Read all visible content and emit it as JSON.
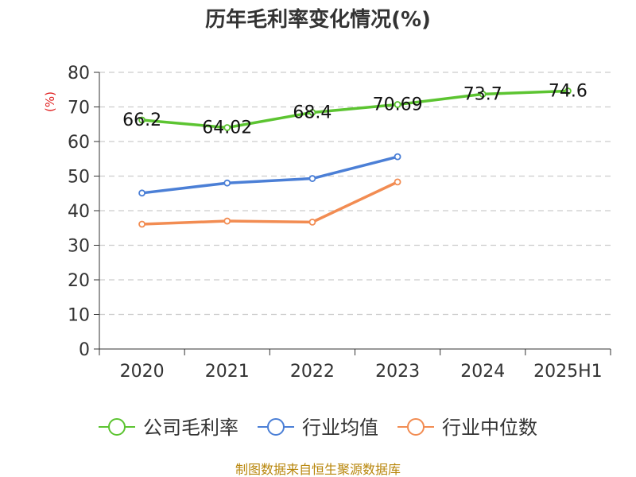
{
  "title": "历年毛利率变化情况(%)",
  "unit_label": "(%)",
  "source": "制图数据来自恒生聚源数据库",
  "chart_data": {
    "type": "line",
    "title": "历年毛利率变化情况(%)",
    "ylabel": "(%)",
    "ylim": [
      0,
      80
    ],
    "yticks": [
      0,
      10,
      20,
      30,
      40,
      50,
      60,
      70,
      80
    ],
    "grid": true,
    "legend_position": "bottom",
    "categories": [
      "2020",
      "2021",
      "2022",
      "2023",
      "2024",
      "2025H1"
    ],
    "series": [
      {
        "name": "公司毛利率",
        "color": "#5cc431",
        "values": [
          66.2,
          64.02,
          68.4,
          70.69,
          73.7,
          74.6
        ],
        "labels": [
          "66.2",
          "64.02",
          "68.4",
          "70.69",
          "73.7",
          "74.6"
        ]
      },
      {
        "name": "行业均值",
        "color": "#4b7fd6",
        "values": [
          45.1,
          48.0,
          49.3,
          55.6,
          null,
          null
        ]
      },
      {
        "name": "行业中位数",
        "color": "#f28c52",
        "values": [
          36.1,
          37.0,
          36.7,
          48.3,
          null,
          null
        ]
      }
    ]
  }
}
